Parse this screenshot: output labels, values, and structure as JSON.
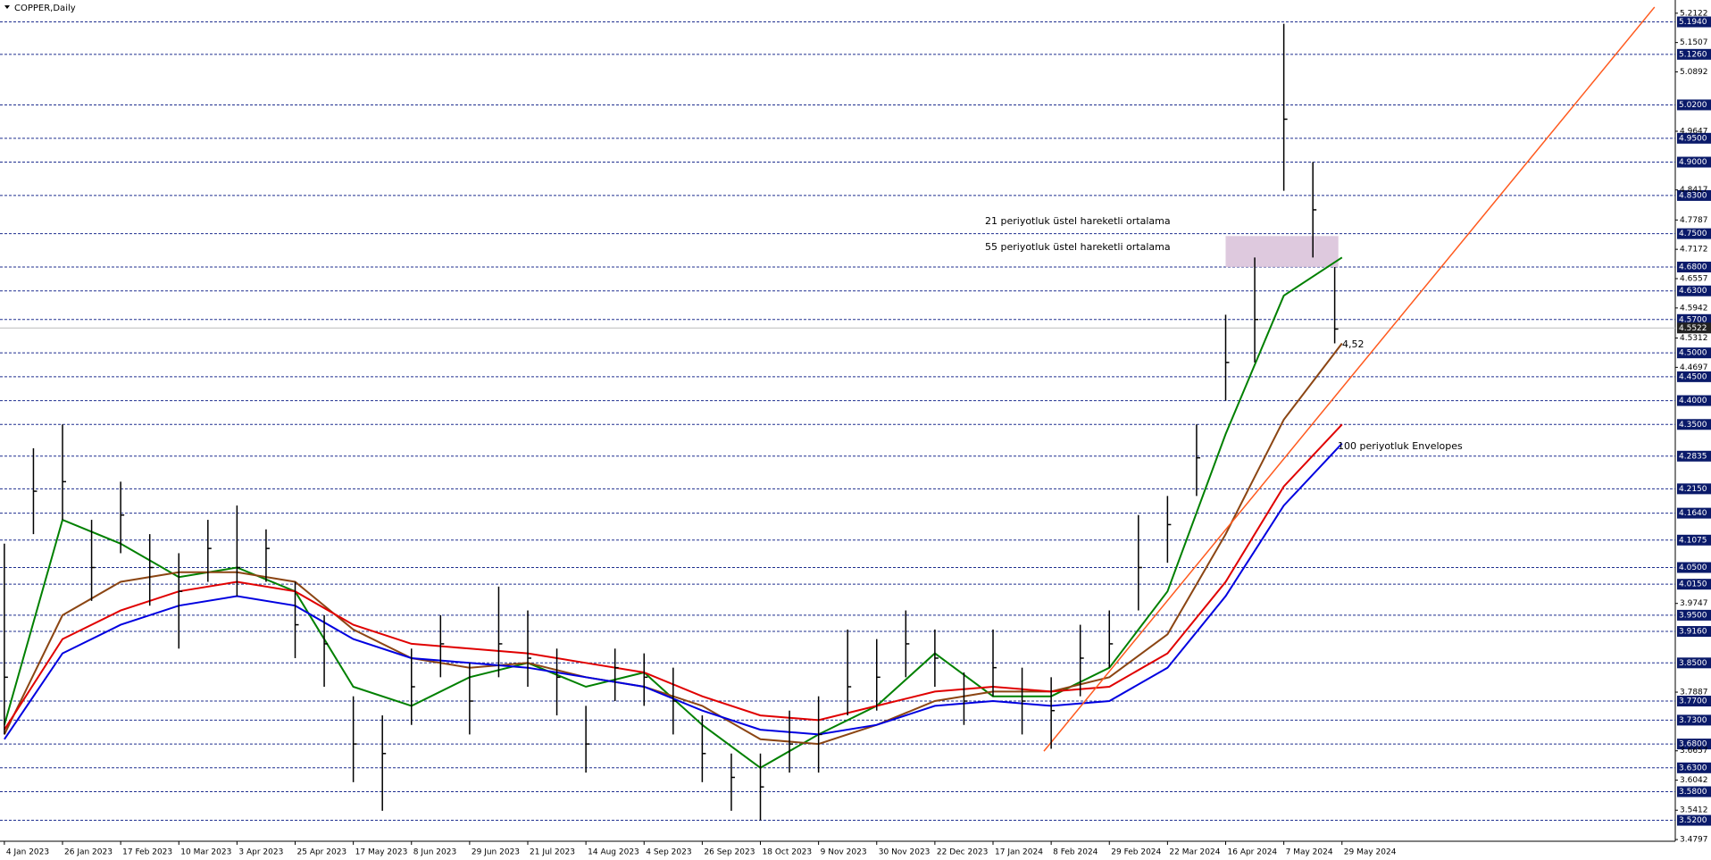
{
  "chart_data": {
    "type": "ohlc",
    "title": "COPPER,Daily",
    "x": [
      0,
      8,
      16,
      24,
      32,
      40,
      48,
      56,
      64,
      72,
      80,
      88,
      96,
      104,
      112,
      120,
      128,
      136,
      144,
      152,
      160,
      168,
      176,
      184,
      192,
      200,
      208,
      216,
      224,
      232,
      240,
      248,
      256,
      264,
      272,
      280,
      288,
      296,
      304,
      312,
      320,
      328,
      336,
      344,
      352,
      360,
      366
    ],
    "high": [
      4.1,
      4.3,
      4.35,
      4.15,
      4.23,
      4.12,
      4.08,
      4.15,
      4.18,
      4.13,
      4.02,
      3.95,
      3.78,
      3.74,
      3.88,
      3.95,
      3.85,
      4.01,
      3.96,
      3.88,
      3.76,
      3.88,
      3.87,
      3.84,
      3.74,
      3.66,
      3.66,
      3.75,
      3.78,
      3.92,
      3.9,
      3.96,
      3.92,
      3.83,
      3.92,
      3.84,
      3.82,
      3.93,
      3.96,
      4.16,
      4.2,
      4.35,
      4.58,
      4.7,
      5.19,
      4.9,
      4.68
    ],
    "low": [
      3.7,
      4.12,
      4.15,
      3.98,
      4.08,
      3.97,
      3.88,
      4.02,
      3.99,
      4.02,
      3.86,
      3.8,
      3.6,
      3.54,
      3.72,
      3.82,
      3.7,
      3.82,
      3.8,
      3.74,
      3.62,
      3.77,
      3.76,
      3.7,
      3.6,
      3.54,
      3.52,
      3.62,
      3.62,
      3.74,
      3.75,
      3.82,
      3.8,
      3.72,
      3.78,
      3.7,
      3.67,
      3.78,
      3.84,
      3.96,
      4.06,
      4.2,
      4.4,
      4.48,
      4.84,
      4.7,
      4.52
    ],
    "close": [
      3.82,
      4.21,
      4.23,
      4.05,
      4.16,
      4.05,
      4.0,
      4.09,
      4.05,
      4.09,
      3.93,
      3.89,
      3.68,
      3.66,
      3.8,
      3.89,
      3.77,
      3.89,
      3.86,
      3.82,
      3.68,
      3.84,
      3.82,
      3.77,
      3.66,
      3.61,
      3.59,
      3.68,
      3.7,
      3.8,
      3.82,
      3.89,
      3.86,
      3.77,
      3.84,
      3.77,
      3.75,
      3.86,
      3.89,
      4.05,
      4.14,
      4.28,
      4.48,
      4.57,
      4.99,
      4.8,
      4.55
    ],
    "bar_color": "#000000",
    "line_x": [
      0,
      16,
      32,
      48,
      64,
      80,
      96,
      112,
      128,
      144,
      160,
      176,
      192,
      208,
      224,
      240,
      256,
      272,
      288,
      304,
      320,
      336,
      352,
      368
    ],
    "lines": [
      {
        "color": "#008000",
        "values": [
          3.72,
          4.15,
          4.1,
          4.03,
          4.05,
          4.0,
          3.8,
          3.76,
          3.82,
          3.85,
          3.8,
          3.83,
          3.72,
          3.63,
          3.7,
          3.76,
          3.87,
          3.78,
          3.78,
          3.84,
          4.0,
          4.33,
          4.62,
          4.7
        ]
      },
      {
        "color": "#8b4513",
        "values": [
          3.7,
          3.95,
          4.02,
          4.04,
          4.04,
          4.02,
          3.92,
          3.86,
          3.84,
          3.85,
          3.82,
          3.8,
          3.76,
          3.69,
          3.68,
          3.72,
          3.77,
          3.79,
          3.79,
          3.82,
          3.91,
          4.12,
          4.36,
          4.52
        ]
      },
      {
        "color": "#e00000",
        "values": [
          3.71,
          3.9,
          3.96,
          4.0,
          4.02,
          4.0,
          3.93,
          3.89,
          3.88,
          3.87,
          3.85,
          3.83,
          3.78,
          3.74,
          3.73,
          3.76,
          3.79,
          3.8,
          3.79,
          3.8,
          3.87,
          4.02,
          4.22,
          4.35
        ]
      },
      {
        "color": "#0000e0",
        "values": [
          3.69,
          3.87,
          3.93,
          3.97,
          3.99,
          3.97,
          3.9,
          3.86,
          3.85,
          3.84,
          3.82,
          3.8,
          3.75,
          3.71,
          3.7,
          3.72,
          3.76,
          3.77,
          3.76,
          3.77,
          3.84,
          3.99,
          4.18,
          4.31
        ]
      }
    ],
    "trendline": {
      "color": "#ff5a1f",
      "x": [
        286,
        454
      ],
      "values": [
        3.665,
        5.225
      ]
    },
    "zone": {
      "color": "#d8bfd8",
      "x": [
        336,
        367
      ],
      "values": [
        4.68,
        4.745
      ]
    },
    "annotations": [
      {
        "text": "21 periyotluk üstel hareketli ortalama",
        "color": "#008000"
      },
      {
        "text": "55 periyotluk üstel hareketli ortalama",
        "color": "#a0522d"
      },
      {
        "text": "100 periyotluk Envelopes",
        "color": "#0000cd"
      },
      {
        "text": "4,52",
        "color": "#a0522d"
      }
    ],
    "xlim": [
      -1.2,
      459.7
    ],
    "ylim": [
      3.4761,
      5.2399
    ],
    "xticks": [
      {
        "value": 0,
        "label": "4 Jan 2023"
      },
      {
        "value": 16,
        "label": "26 Jan 2023"
      },
      {
        "value": 32,
        "label": "17 Feb 2023"
      },
      {
        "value": 48,
        "label": "10 Mar 2023"
      },
      {
        "value": 64,
        "label": "3 Apr 2023"
      },
      {
        "value": 80,
        "label": "25 Apr 2023"
      },
      {
        "value": 96,
        "label": "17 May 2023"
      },
      {
        "value": 112,
        "label": "8 Jun 2023"
      },
      {
        "value": 128,
        "label": "29 Jun 2023"
      },
      {
        "value": 144,
        "label": "21 Jul 2023"
      },
      {
        "value": 160,
        "label": "14 Aug 2023"
      },
      {
        "value": 176,
        "label": "4 Sep 2023"
      },
      {
        "value": 192,
        "label": "26 Sep 2023"
      },
      {
        "value": 208,
        "label": "18 Oct 2023"
      },
      {
        "value": 224,
        "label": "9 Nov 2023"
      },
      {
        "value": 240,
        "label": "30 Nov 2023"
      },
      {
        "value": 256,
        "label": "22 Dec 2023"
      },
      {
        "value": 272,
        "label": "17 Jan 2024"
      },
      {
        "value": 288,
        "label": "8 Feb 2024"
      },
      {
        "value": 304,
        "label": "29 Feb 2024"
      },
      {
        "value": 320,
        "label": "22 Mar 2024"
      },
      {
        "value": 336,
        "label": "16 Apr 2024"
      },
      {
        "value": 352,
        "label": "7 May 2024"
      },
      {
        "value": 368,
        "label": "29 May 2024"
      }
    ],
    "yticks": [
      5.2122,
      5.1507,
      5.0892,
      4.9647,
      4.8417,
      4.7787,
      4.7172,
      4.6557,
      4.5942,
      4.5312,
      4.4697,
      3.9747,
      3.7887,
      3.6657,
      3.6042,
      3.5412,
      3.4797
    ],
    "levels": [
      {
        "value": 5.194,
        "label": "5.1940"
      },
      {
        "value": 5.126,
        "label": "5.1260"
      },
      {
        "value": 5.02,
        "label": "5.0200"
      },
      {
        "value": 4.95,
        "label": "4.9500"
      },
      {
        "value": 4.9,
        "label": "4.9000"
      },
      {
        "value": 4.83,
        "label": "4.8300"
      },
      {
        "value": 4.75,
        "label": "4.7500"
      },
      {
        "value": 4.68,
        "label": "4.6800"
      },
      {
        "value": 4.63,
        "label": "4.6300"
      },
      {
        "value": 4.57,
        "label": "4.5700"
      },
      {
        "value": 4.5,
        "label": "4.5000"
      },
      {
        "value": 4.45,
        "label": "4.4500"
      },
      {
        "value": 4.4,
        "label": "4.4000"
      },
      {
        "value": 4.35,
        "label": "4.3500"
      },
      4.2835,
      {
        "value": 4.215,
        "label": "4.2150"
      },
      {
        "value": 4.164,
        "label": "4.1640"
      },
      4.1075,
      {
        "value": 4.05,
        "label": "4.0500"
      },
      {
        "value": 4.015,
        "label": "4.0150"
      },
      {
        "value": 3.95,
        "label": "3.9500"
      },
      {
        "value": 3.916,
        "label": "3.9160"
      },
      {
        "value": 3.85,
        "label": "3.8500"
      },
      {
        "value": 3.77,
        "label": "3.7700"
      },
      {
        "value": 3.73,
        "label": "3.7300"
      },
      {
        "value": 3.68,
        "label": "3.6800"
      },
      {
        "value": 3.63,
        "label": "3.6300"
      },
      {
        "value": 3.58,
        "label": "3.5800"
      },
      {
        "value": 3.52,
        "label": "3.5200"
      }
    ],
    "current_price": 4.5522,
    "grid_color": "#1f2f8f"
  }
}
